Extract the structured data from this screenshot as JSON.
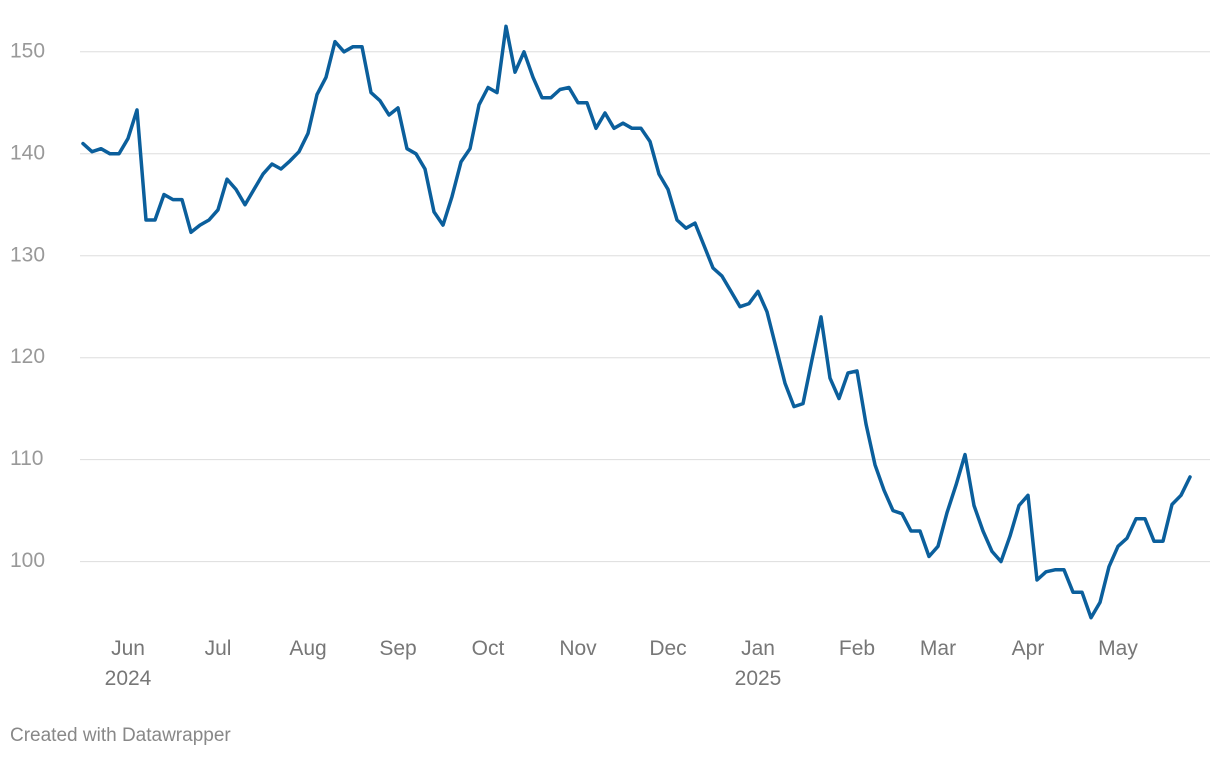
{
  "chart_data": {
    "type": "line",
    "categories": [
      null,
      null,
      null,
      null,
      null,
      "Jun\n2024",
      null,
      null,
      null,
      null,
      null,
      null,
      null,
      null,
      null,
      "Jul",
      null,
      null,
      null,
      null,
      null,
      null,
      null,
      null,
      null,
      "Aug",
      null,
      null,
      null,
      null,
      null,
      null,
      null,
      null,
      null,
      "Sep",
      null,
      null,
      null,
      null,
      null,
      null,
      null,
      null,
      null,
      "Oct",
      null,
      null,
      null,
      null,
      null,
      null,
      null,
      null,
      null,
      "Nov",
      null,
      null,
      null,
      null,
      null,
      null,
      null,
      null,
      null,
      "Dec",
      null,
      null,
      null,
      null,
      null,
      null,
      null,
      null,
      null,
      "Jan\n2025",
      null,
      null,
      null,
      null,
      null,
      null,
      null,
      null,
      null,
      null,
      "Feb",
      null,
      null,
      null,
      null,
      null,
      null,
      null,
      null,
      "Mar",
      null,
      null,
      null,
      null,
      null,
      null,
      null,
      null,
      null,
      "Apr",
      null,
      null,
      null,
      null,
      null,
      null,
      null,
      null,
      null,
      "May",
      null,
      null,
      null,
      null,
      null,
      null,
      null,
      null
    ],
    "values": [
      141,
      140.2,
      140.5,
      140,
      140,
      141.5,
      144.3,
      133.5,
      133.5,
      136,
      135.5,
      135.5,
      132.3,
      133,
      133.5,
      134.5,
      137.5,
      136.5,
      135,
      136.5,
      138,
      139,
      138.5,
      139.3,
      140.2,
      142,
      145.8,
      147.5,
      151,
      150,
      150.5,
      150.5,
      146,
      145.2,
      143.8,
      144.5,
      140.5,
      140,
      138.5,
      134.3,
      133,
      135.8,
      139.2,
      140.5,
      144.8,
      146.5,
      146,
      152.5,
      148,
      150,
      147.5,
      145.5,
      145.5,
      146.3,
      146.5,
      145,
      145,
      142.5,
      144,
      142.5,
      143,
      142.5,
      142.5,
      141.2,
      138,
      136.5,
      133.5,
      132.7,
      133.2,
      131,
      128.8,
      128,
      126.5,
      125,
      125.3,
      126.5,
      124.5,
      121,
      117.5,
      115.2,
      115.5,
      119.8,
      124,
      118,
      116,
      118.5,
      118.7,
      113.5,
      109.5,
      107,
      105,
      104.7,
      103,
      103,
      100.5,
      101.5,
      104.8,
      107.5,
      110.5,
      105.5,
      103,
      101,
      100,
      102.5,
      105.5,
      106.5,
      98.2,
      99,
      99.2,
      99.2,
      97,
      97,
      94.5,
      96,
      99.5,
      101.5,
      102.3,
      104.2,
      104.2,
      102,
      102,
      105.6,
      106.5,
      108.3
    ],
    "color": "#0b5f9c",
    "ylim": [
      93,
      154
    ],
    "yticks": [
      100,
      110,
      120,
      130,
      140,
      150
    ],
    "grid": true,
    "credit": "Created with Datawrapper"
  }
}
